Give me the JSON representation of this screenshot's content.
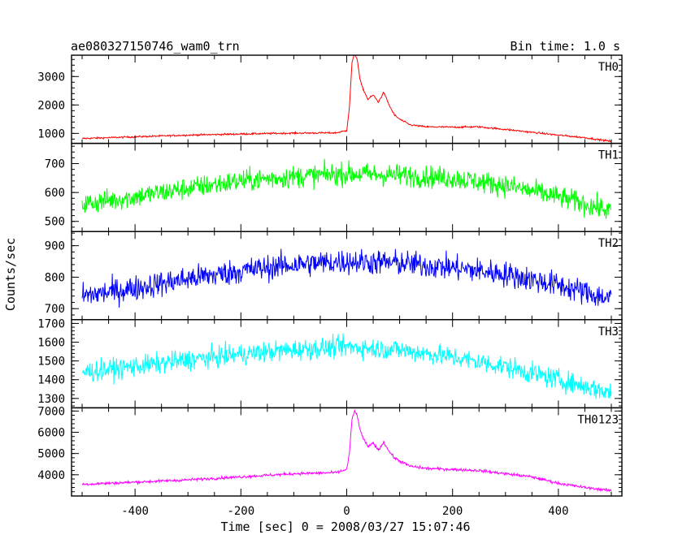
{
  "chart_data": {
    "type": "line",
    "title": "ae080327150746_wam0_trn",
    "subtitle": "Bin time: 1.0 s",
    "xlabel": "Time [sec] 0 = 2008/03/27 15:07:46",
    "ylabel": "Counts/sec",
    "xlim": [
      -520,
      520
    ],
    "xticks": [
      -400,
      -200,
      0,
      200,
      400
    ],
    "grid": false,
    "panels": [
      {
        "name": "TH0",
        "color": "#ff0000",
        "ylim": [
          650,
          3750
        ],
        "yticks": [
          1000,
          2000,
          3000
        ],
        "x": [
          -500,
          -400,
          -300,
          -200,
          -100,
          -20,
          0,
          5,
          10,
          15,
          20,
          25,
          30,
          40,
          50,
          60,
          70,
          80,
          90,
          100,
          120,
          150,
          200,
          250,
          300,
          350,
          400,
          450,
          500
        ],
        "y": [
          820,
          880,
          940,
          980,
          1010,
          1020,
          1100,
          1900,
          3500,
          3800,
          3600,
          2900,
          2600,
          2200,
          2350,
          2100,
          2450,
          2000,
          1650,
          1500,
          1300,
          1230,
          1220,
          1230,
          1140,
          1040,
          940,
          850,
          720
        ],
        "noise": 30
      },
      {
        "name": "TH1",
        "color": "#00ff00",
        "ylim": [
          465,
          770
        ],
        "yticks": [
          500,
          600,
          700
        ],
        "x": [
          -500,
          -400,
          -300,
          -200,
          -100,
          0,
          100,
          200,
          300,
          400,
          500
        ],
        "y": [
          560,
          585,
          615,
          640,
          655,
          665,
          660,
          650,
          625,
          585,
          535
        ],
        "noise": 38
      },
      {
        "name": "TH2",
        "color": "#0000ff",
        "ylim": [
          665,
          945
        ],
        "yticks": [
          700,
          800,
          900
        ],
        "x": [
          -500,
          -400,
          -300,
          -200,
          -100,
          0,
          100,
          200,
          300,
          400,
          500
        ],
        "y": [
          740,
          765,
          795,
          820,
          840,
          850,
          845,
          830,
          810,
          775,
          730
        ],
        "noise": 40
      },
      {
        "name": "TH3",
        "color": "#00ffff",
        "ylim": [
          1250,
          1720
        ],
        "yticks": [
          1300,
          1400,
          1500,
          1600,
          1700
        ],
        "x": [
          -500,
          -400,
          -300,
          -200,
          -100,
          0,
          100,
          200,
          300,
          400,
          500
        ],
        "y": [
          1440,
          1470,
          1505,
          1535,
          1560,
          1575,
          1560,
          1520,
          1470,
          1400,
          1330
        ],
        "noise": 55
      },
      {
        "name": "TH0123",
        "color": "#ff00ff",
        "ylim": [
          3000,
          7150
        ],
        "yticks": [
          4000,
          5000,
          6000,
          7000
        ],
        "x": [
          -500,
          -400,
          -300,
          -200,
          -100,
          -20,
          0,
          5,
          10,
          15,
          20,
          25,
          30,
          40,
          50,
          60,
          70,
          80,
          90,
          100,
          120,
          150,
          200,
          250,
          300,
          350,
          400,
          450,
          500
        ],
        "y": [
          3550,
          3650,
          3760,
          3900,
          4050,
          4100,
          4250,
          5000,
          6600,
          7000,
          6800,
          6100,
          5800,
          5300,
          5500,
          5150,
          5550,
          5100,
          4800,
          4650,
          4400,
          4300,
          4250,
          4200,
          4050,
          3900,
          3600,
          3400,
          3250
        ],
        "noise": 65
      }
    ]
  }
}
